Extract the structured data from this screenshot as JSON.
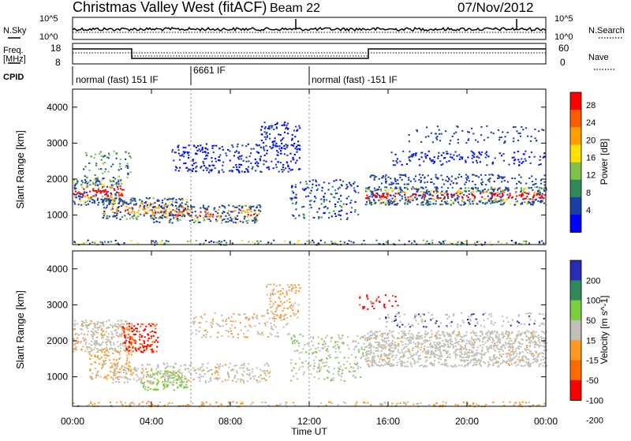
{
  "header": {
    "title": "Christmas Valley West (fitACF)",
    "beam": "Beam 22",
    "date": "07/Nov/2012"
  },
  "status_panels": {
    "nsky_label": "N.Sky",
    "nsky_ticks": [
      "10^5",
      "10^0"
    ],
    "nsearch_label": "N.Search",
    "nsearch_ticks": [
      "10^5",
      "10^0"
    ],
    "freq_label": "Freq.",
    "freq_unit": "[MHz]",
    "freq_ticks": [
      "18",
      "8"
    ],
    "nave_label": "Nave",
    "nave_ticks": [
      "60",
      "0"
    ],
    "cpid_label": "CPID",
    "cpid_entries": [
      {
        "text": "normal (fast) 151 IF",
        "start_hour": 0
      },
      {
        "text": "6661 IF",
        "start_hour": 6
      },
      {
        "text": "normal (fast) -151 IF",
        "start_hour": 12
      }
    ]
  },
  "chart_data": [
    {
      "type": "heatmap",
      "quantity": "Power",
      "ylabel": "Slant Range [km]",
      "ylim": [
        180,
        4500
      ],
      "yticks": [
        "4000",
        "3000",
        "2000",
        "1000"
      ],
      "colorbar_label": "Power [dB]",
      "colorbar_ticks": [
        "28",
        "24",
        "20",
        "16",
        "12",
        "8",
        "4"
      ],
      "colors": [
        "#ff0000",
        "#ff5a00",
        "#ffa000",
        "#ffe000",
        "#7fc14a",
        "#2e8b57",
        "#1a3fa6",
        "#0000ff"
      ],
      "features": [
        {
          "time_h": [
            0,
            2.5
          ],
          "range_km": [
            1300,
            2000
          ],
          "peak_db": 26
        },
        {
          "time_h": [
            1.5,
            9.5
          ],
          "range_km": [
            800,
            1400
          ],
          "peak_db": 22
        },
        {
          "time_h": [
            14.8,
            24
          ],
          "range_km": [
            1300,
            1800
          ],
          "peak_db": 28
        },
        {
          "time_h": [
            5,
            11.5
          ],
          "range_km": [
            2200,
            3500
          ],
          "peak_db": 8
        }
      ]
    },
    {
      "type": "heatmap",
      "quantity": "Velocity",
      "ylabel": "Slant Range [km]",
      "ylim": [
        180,
        4500
      ],
      "yticks": [
        "4000",
        "3000",
        "2000",
        "1000"
      ],
      "colorbar_label": "Velocity [m s^-1]",
      "colorbar_ticks": [
        "200",
        "100",
        "50",
        "15",
        "-15",
        "-50",
        "-100",
        "-200"
      ],
      "colors": [
        "#2b2bb5",
        "#2e8b57",
        "#7ccd3f",
        "#c0c0b8",
        "#ff9a1e",
        "#ff6a00",
        "#ff0000"
      ],
      "features": [
        {
          "time_h": [
            0,
            3
          ],
          "range_km": [
            1800,
            2600
          ],
          "velocity": 0
        },
        {
          "time_h": [
            2.5,
            4
          ],
          "range_km": [
            1800,
            2600
          ],
          "velocity": -180
        },
        {
          "time_h": [
            3.5,
            5.5
          ],
          "range_km": [
            700,
            1200
          ],
          "velocity": 60
        },
        {
          "time_h": [
            14.8,
            24
          ],
          "range_km": [
            1300,
            2300
          ],
          "velocity": 0
        }
      ]
    }
  ],
  "time_axis": {
    "xlabel": "Time UT",
    "ticks": [
      "00:00",
      "04:00",
      "08:00",
      "12:00",
      "16:00",
      "20:00",
      "00:00"
    ],
    "xlim": [
      0,
      24
    ]
  }
}
